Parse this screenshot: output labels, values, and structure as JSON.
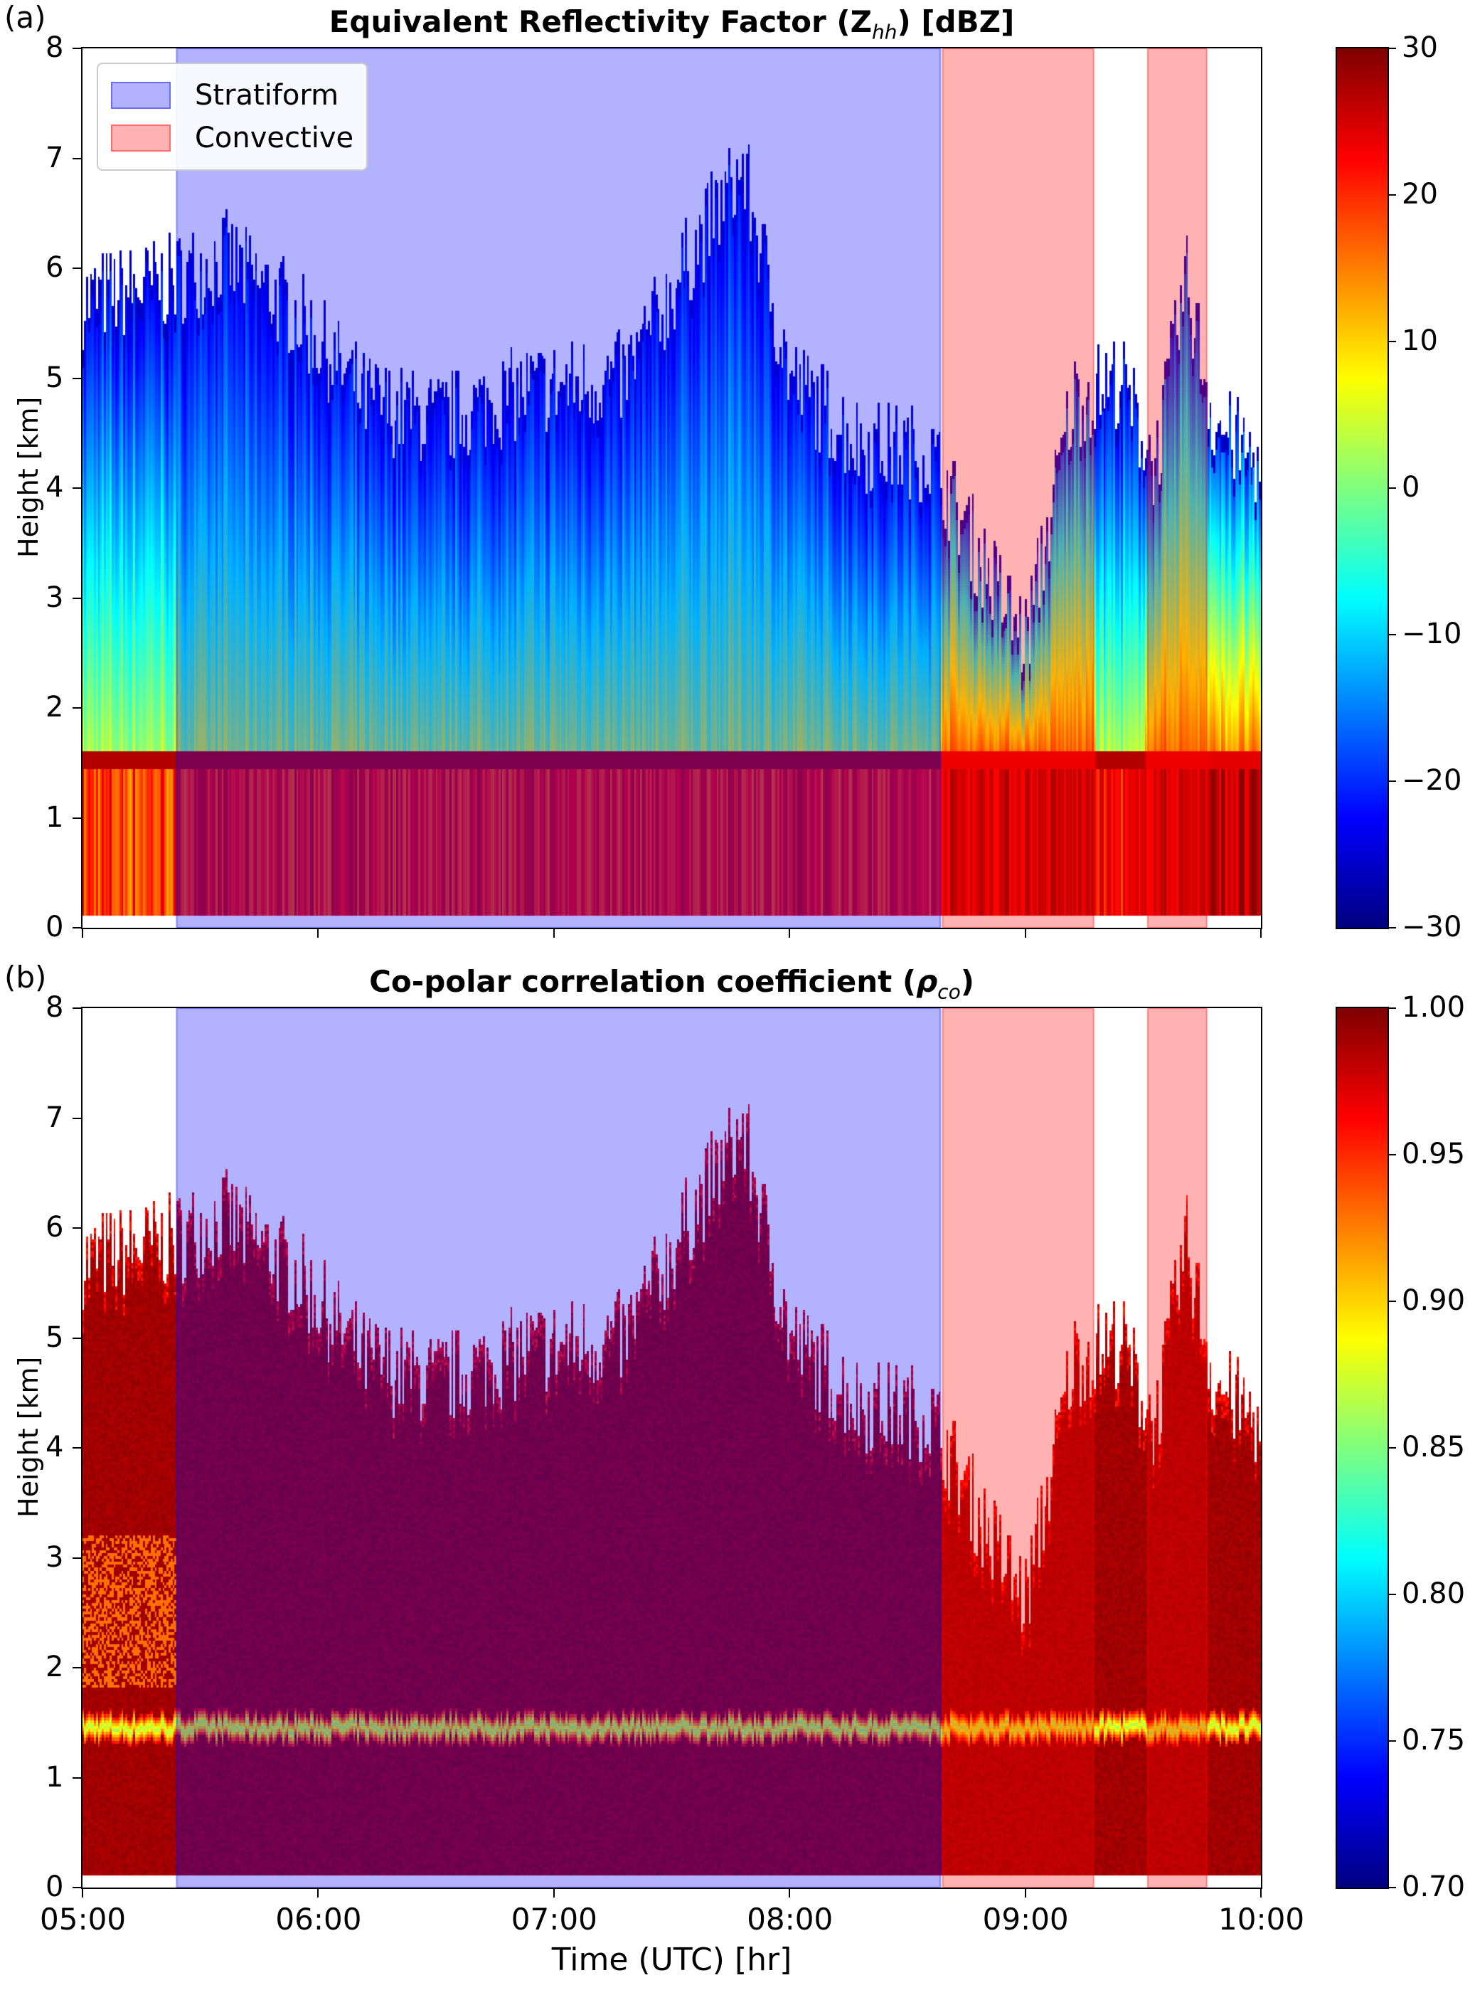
{
  "chart_data": [
    {
      "type": "heatmap",
      "panel_label": "(a)",
      "title_main": "Equivalent Reflectivity Factor (Z",
      "title_sub": "hh",
      "title_end": ") [dBZ]",
      "ylabel": "Height [km]",
      "xlabel": "",
      "ylim": [
        0,
        8
      ],
      "yticks": [
        "0",
        "1",
        "2",
        "3",
        "4",
        "5",
        "6",
        "7",
        "8"
      ],
      "xlim_hours": [
        5,
        10
      ],
      "xticks": [
        "05:00",
        "06:00",
        "07:00",
        "08:00",
        "09:00",
        "10:00"
      ],
      "show_xtick_labels": false,
      "variable": "reflectivity",
      "colorbar": {
        "min": -30,
        "max": 30,
        "ticks": [
          "30",
          "20",
          "10",
          "0",
          "−10",
          "−20",
          "−30"
        ],
        "colormap": "jet"
      },
      "legend": {
        "placement": "upper-left",
        "entries": [
          {
            "label": "Stratiform",
            "color": "#0000ff"
          },
          {
            "label": "Convective",
            "color": "#ff0000"
          }
        ]
      }
    },
    {
      "type": "heatmap",
      "panel_label": "(b)",
      "title_main": "Co-polar correlation coefficient (",
      "title_sub": "co",
      "title_end": ")",
      "title_symbol": "ρ",
      "ylabel": "Height [km]",
      "xlabel": "Time (UTC) [hr]",
      "ylim": [
        0,
        8
      ],
      "yticks": [
        "0",
        "1",
        "2",
        "3",
        "4",
        "5",
        "6",
        "7",
        "8"
      ],
      "xlim_hours": [
        5,
        10
      ],
      "xticks": [
        "05:00",
        "06:00",
        "07:00",
        "08:00",
        "09:00",
        "10:00"
      ],
      "show_xtick_labels": true,
      "variable": "rhohv",
      "colorbar": {
        "min": 0.7,
        "max": 1.0,
        "ticks": [
          "1.00",
          "0.95",
          "0.90",
          "0.85",
          "0.80",
          "0.75",
          "0.70"
        ],
        "colormap": "jet"
      }
    }
  ],
  "regions": [
    {
      "type": "Stratiform",
      "start_hour": 5.4,
      "end_hour": 8.64,
      "color": "#0000ff"
    },
    {
      "type": "Convective",
      "start_hour": 8.65,
      "end_hour": 9.29,
      "color": "#ff0000"
    },
    {
      "type": "Convective",
      "start_hour": 9.52,
      "end_hour": 9.77,
      "color": "#ff0000"
    }
  ],
  "features": {
    "melting_layer_km": 1.5,
    "min_height_km": 0.1
  }
}
